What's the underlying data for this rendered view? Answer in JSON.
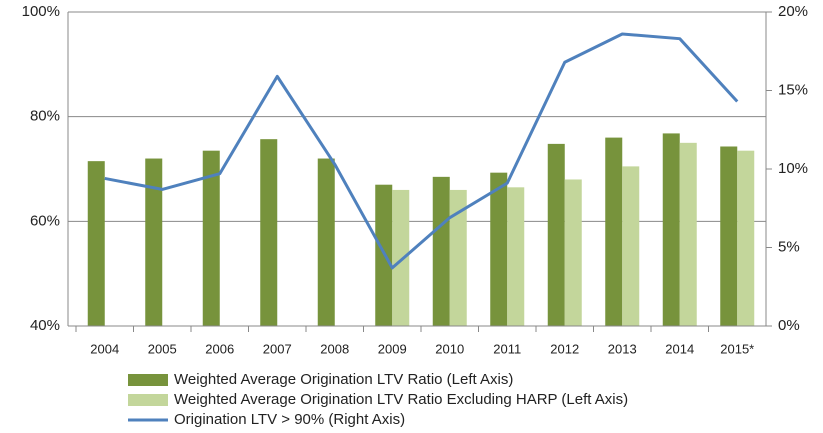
{
  "chart_data": {
    "type": "bar",
    "categories": [
      "2004",
      "2005",
      "2006",
      "2007",
      "2008",
      "2009",
      "2010",
      "2011",
      "2012",
      "2013",
      "2014",
      "2015*"
    ],
    "series": [
      {
        "name": "Weighted Average Origination LTV Ratio (Left Axis)",
        "color": "#77933c",
        "values": [
          71.5,
          72,
          73.5,
          75.7,
          72,
          67,
          68.5,
          69.3,
          74.8,
          76,
          76.8,
          74.3
        ]
      },
      {
        "name": "Weighted Average Origination LTV Ratio Excluding HARP (Left Axis)",
        "color": "#c3d69b",
        "values": [
          null,
          null,
          null,
          null,
          null,
          66,
          66,
          66.5,
          68,
          70.5,
          75,
          73.5
        ]
      },
      {
        "name": "Origination LTV > 90% (Right Axis)",
        "type": "line",
        "axis": "y2",
        "color": "#4f81bd",
        "values": [
          9.4,
          8.7,
          9.7,
          15.9,
          10.3,
          3.7,
          6.9,
          9.1,
          16.8,
          18.6,
          18.3,
          14.3
        ]
      }
    ],
    "ylim": [
      40,
      100
    ],
    "yticks": [
      {
        "value": 40,
        "label": "40%"
      },
      {
        "value": 60,
        "label": "60%"
      },
      {
        "value": 80,
        "label": "80%"
      },
      {
        "value": 100,
        "label": "100%"
      }
    ],
    "y2lim": [
      0,
      20
    ],
    "y2ticks": [
      {
        "value": 0,
        "label": "0%"
      },
      {
        "value": 5,
        "label": "5%"
      },
      {
        "value": 10,
        "label": "10%"
      },
      {
        "value": 15,
        "label": "15%"
      },
      {
        "value": 20,
        "label": "20%"
      }
    ],
    "grid": true,
    "legend": "bottom"
  }
}
